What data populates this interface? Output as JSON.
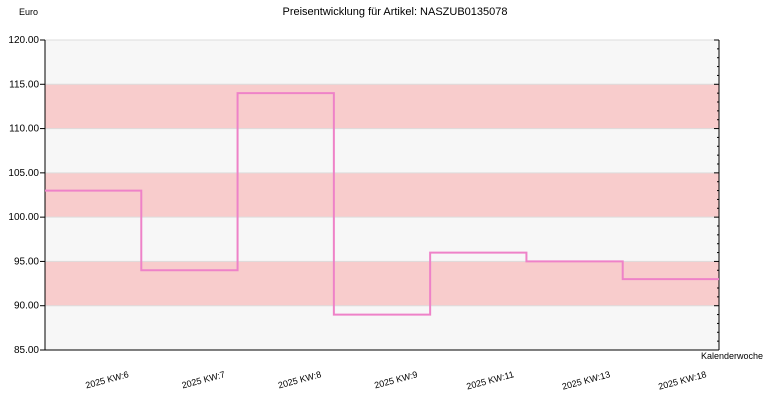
{
  "chart_data": {
    "type": "line",
    "step": true,
    "title": "Preisentwicklung für Artikel: NASZUB0135078",
    "ylabel": "Euro",
    "xlabel": "Kalenderwoche",
    "ylim": [
      85,
      120
    ],
    "yticks": [
      "120.00",
      "115.00",
      "110.00",
      "105.00",
      "100.00",
      "95.00",
      "90.00",
      "85.00"
    ],
    "categories": [
      "2025 KW:6",
      "2025 KW:7",
      "2025 KW:8",
      "2025 KW:9",
      "2025 KW:11",
      "2025 KW:13",
      "2025 KW:18"
    ],
    "series": [
      {
        "values": [
          103,
          94,
          114,
          89,
          96,
          95,
          93
        ]
      }
    ],
    "grid": true,
    "colors": {
      "line": "#ee82c8",
      "band_pink": "#f8cccc",
      "band_light": "#f7f7f7",
      "axis": "#000000",
      "grid": "#dddddd"
    }
  }
}
